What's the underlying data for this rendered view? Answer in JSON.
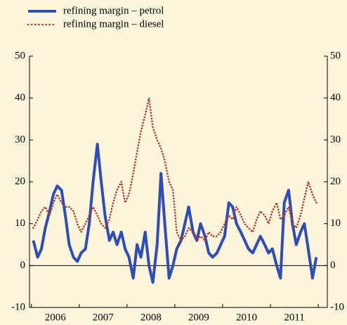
{
  "chart_data": {
    "type": "line",
    "categories": [
      "2006",
      "2007",
      "2008",
      "2009",
      "2010",
      "2011"
    ],
    "x": [
      2006.04,
      2006.13,
      2006.21,
      2006.29,
      2006.38,
      2006.46,
      2006.54,
      2006.63,
      2006.71,
      2006.79,
      2006.88,
      2006.96,
      2007.04,
      2007.13,
      2007.21,
      2007.29,
      2007.38,
      2007.46,
      2007.54,
      2007.63,
      2007.71,
      2007.79,
      2007.88,
      2007.96,
      2008.04,
      2008.13,
      2008.21,
      2008.29,
      2008.38,
      2008.46,
      2008.54,
      2008.63,
      2008.71,
      2008.79,
      2008.88,
      2008.96,
      2009.04,
      2009.13,
      2009.21,
      2009.29,
      2009.38,
      2009.46,
      2009.54,
      2009.63,
      2009.71,
      2009.79,
      2009.88,
      2009.96,
      2010.04,
      2010.13,
      2010.21,
      2010.29,
      2010.38,
      2010.46,
      2010.54,
      2010.63,
      2010.71,
      2010.79,
      2010.88,
      2010.96,
      2011.04,
      2011.13,
      2011.21,
      2011.29,
      2011.38,
      2011.46,
      2011.54,
      2011.63,
      2011.71,
      2011.79,
      2011.88,
      2011.96
    ],
    "series": [
      {
        "name": "refining margin – petrol",
        "color": "#2f4db8",
        "style": "solid",
        "values": [
          6,
          2,
          4,
          9,
          13,
          17,
          19,
          18,
          12,
          5,
          2,
          1,
          3,
          4,
          10,
          20,
          29,
          20,
          12,
          6,
          8,
          5,
          8,
          4,
          2,
          -3,
          5,
          2,
          8,
          0,
          -4,
          5,
          22,
          10,
          -3,
          0,
          4,
          6,
          10,
          14,
          8,
          6,
          10,
          7,
          3,
          2,
          3,
          5,
          7,
          15,
          14,
          10,
          8,
          6,
          4,
          3,
          5,
          7,
          5,
          3,
          4,
          0,
          -3,
          15,
          18,
          10,
          5,
          8,
          10,
          4,
          -3,
          2
        ]
      },
      {
        "name": "refining margin – diesel",
        "color": "#b23a2c",
        "style": "dotted",
        "values": [
          9,
          11,
          13,
          14,
          12,
          15,
          17,
          15,
          14,
          14,
          13,
          10,
          8,
          10,
          12,
          14,
          12,
          10,
          9,
          11,
          15,
          18,
          20,
          15,
          17,
          22,
          27,
          32,
          36,
          40,
          33,
          30,
          28,
          25,
          20,
          18,
          8,
          6,
          7,
          9,
          8,
          6,
          7,
          6,
          8,
          7,
          7,
          8,
          10,
          12,
          11,
          14,
          12,
          10,
          9,
          8,
          11,
          13,
          12,
          10,
          13,
          15,
          11,
          12,
          14,
          10,
          9,
          12,
          16,
          20,
          17,
          15
        ]
      }
    ],
    "xlim": [
      2005.96,
      2012.19
    ],
    "xticks": [
      2006,
      2007,
      2008,
      2009,
      2010,
      2011,
      2012
    ],
    "ylim": [
      -10,
      50
    ],
    "yticks": [
      -10,
      0,
      10,
      20,
      30,
      40,
      50
    ],
    "zero_line": true,
    "legend": "top-left"
  }
}
